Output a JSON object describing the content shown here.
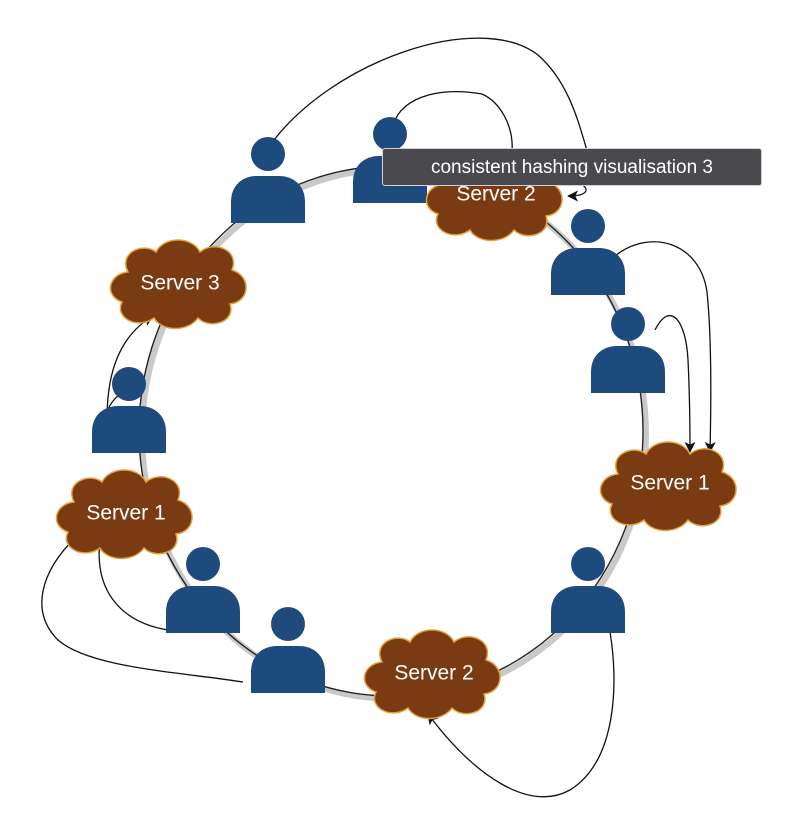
{
  "tooltip": {
    "text": "consistent hashing visualisation 3"
  },
  "servers": [
    {
      "label": "Server 2"
    },
    {
      "label": "Server 3"
    },
    {
      "label": "Server 1"
    },
    {
      "label": "Server 1"
    },
    {
      "label": "Server 2"
    }
  ],
  "users_count": 9,
  "colors": {
    "server_fill": "#7a3b12",
    "server_stroke": "#e3a13a",
    "user_fill": "#1d4b7e",
    "ring": "#222222",
    "tooltip_bg": "#4a4a4e"
  },
  "icons": {
    "server": "cloud-shape",
    "user": "person-icon"
  }
}
